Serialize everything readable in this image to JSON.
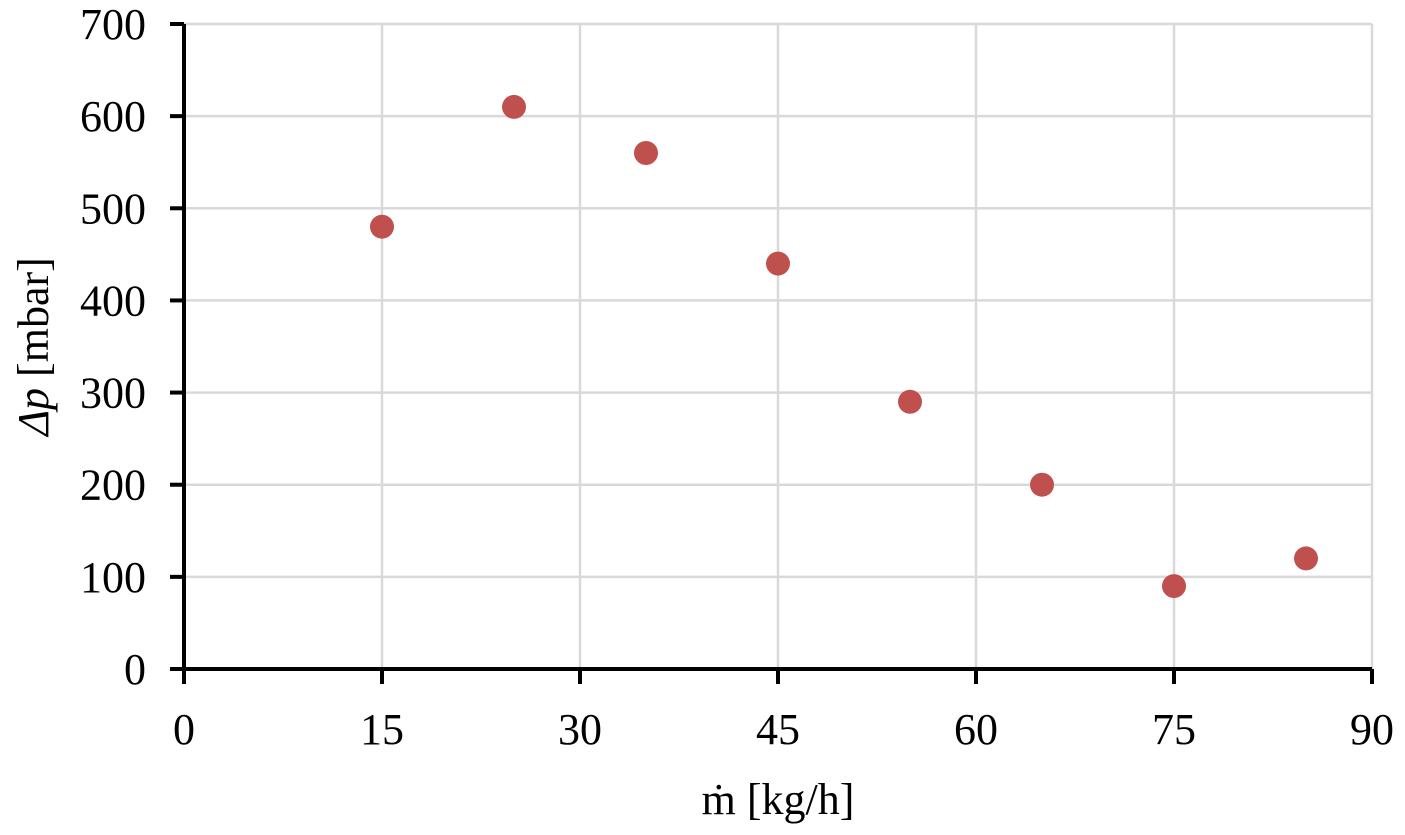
{
  "chart_data": {
    "type": "scatter",
    "title": "",
    "xlabel": "ṁ [kg/h]",
    "ylabel_symbol": "Δp",
    "ylabel_unit": " [mbar]",
    "xlim": [
      0,
      90
    ],
    "ylim": [
      0,
      700
    ],
    "x_ticks": [
      0,
      15,
      30,
      45,
      60,
      75,
      90
    ],
    "y_ticks": [
      0,
      100,
      200,
      300,
      400,
      500,
      600,
      700
    ],
    "grid": true,
    "legend": "none",
    "marker_color": "#c0504d",
    "series": [
      {
        "points": [
          {
            "x": 15,
            "y": 480
          },
          {
            "x": 25,
            "y": 610
          },
          {
            "x": 35,
            "y": 560
          },
          {
            "x": 45,
            "y": 440
          },
          {
            "x": 55,
            "y": 290
          },
          {
            "x": 65,
            "y": 200
          },
          {
            "x": 75,
            "y": 90
          },
          {
            "x": 85,
            "y": 120
          }
        ]
      }
    ]
  }
}
